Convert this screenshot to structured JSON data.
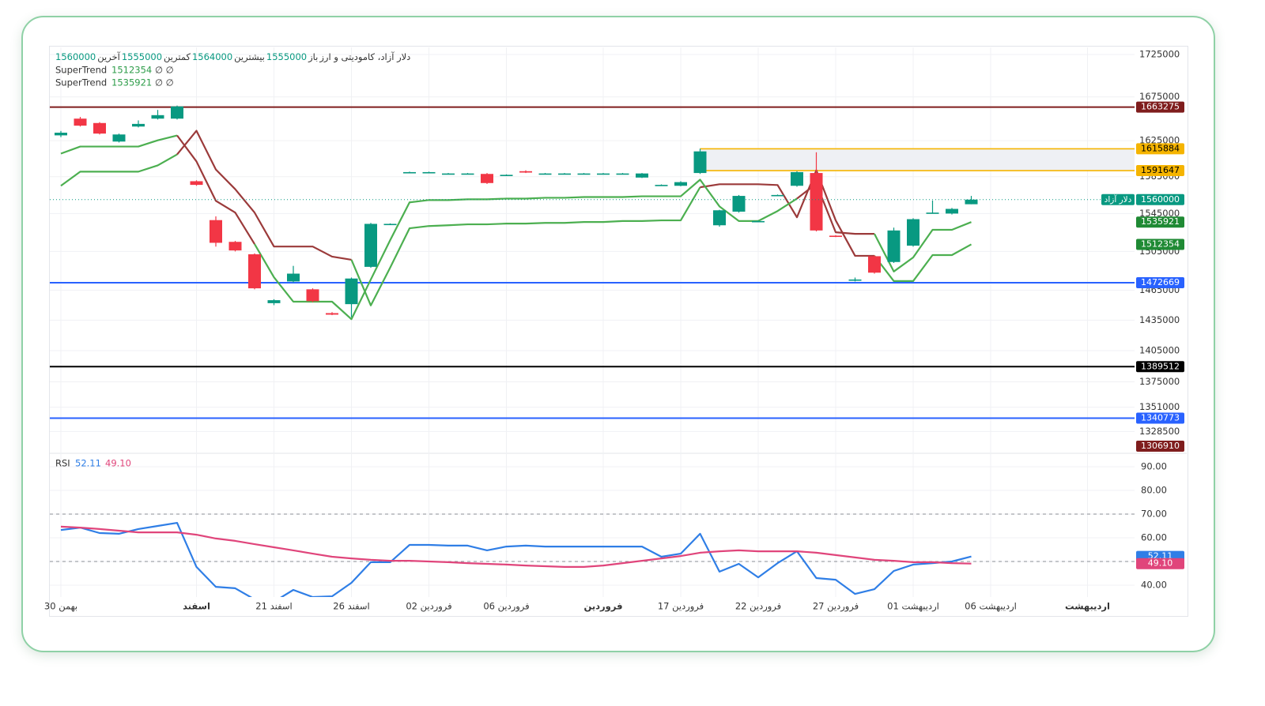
{
  "chart_data": [
    {
      "type": "candlestick",
      "title": "دلار آزاد، کامودیتی و ارز",
      "symbol": "دلار آزاد",
      "ohlc_labels": {
        "open": "باز",
        "high": "بیشترین",
        "low": "کمترین",
        "close": "آخرین"
      },
      "log_scale": true,
      "grid": true,
      "up_color": "#089981",
      "down_color": "#f23645",
      "ylim": [
        1310000,
        1733500
      ],
      "yticks": [
        1725000,
        1675000,
        1625000,
        1585000,
        1545000,
        1505000,
        1465000,
        1435000,
        1405000,
        1375000,
        1351000,
        1328500
      ],
      "categories": [
        "30 بهمن",
        null,
        null,
        null,
        null,
        null,
        null,
        "اسفند",
        null,
        null,
        null,
        "21 اسفند",
        null,
        null,
        null,
        "26 اسفند",
        null,
        null,
        null,
        "02 فروردین",
        null,
        null,
        null,
        "06 فروردین",
        null,
        null,
        null,
        null,
        "فروردین",
        null,
        null,
        null,
        "17 فروردین",
        null,
        null,
        null,
        "22 فروردین",
        null,
        null,
        null,
        "27 فروردین",
        null,
        null,
        null,
        "01 اردیبهشت",
        null,
        null,
        null,
        "06 اردیبهشت",
        null,
        null,
        null,
        null,
        "اردیبهشت"
      ],
      "open": [
        1631000,
        1650000,
        1645000,
        1624000,
        1641000,
        1650000,
        1650000,
        1580000,
        1538000,
        1515000,
        1502000,
        1452000,
        1474000,
        1466000,
        1442000,
        1451000,
        1489000,
        1533500,
        1589500,
        1589500,
        1588000,
        1588000,
        1588000,
        1586500,
        1591000,
        1588000,
        1588000,
        1588000,
        1588000,
        1588000,
        1584000,
        1575500,
        1575000,
        1589000,
        1532500,
        1547000,
        1536500,
        1564500,
        1575000,
        1589000,
        1521500,
        1475500,
        1500000,
        1494000,
        1511000,
        1545500,
        1545000,
        1555000,
        null,
        null,
        null,
        null,
        null,
        null
      ],
      "high": [
        1636000,
        1652000,
        1646000,
        1633000,
        1648000,
        1660000,
        1665000,
        1581000,
        1542000,
        1516000,
        1503000,
        1456000,
        1490000,
        1467000,
        1443000,
        1478000,
        1535000,
        1534500,
        1590500,
        1590500,
        1589000,
        1589000,
        1589000,
        1587500,
        1592000,
        1589000,
        1589000,
        1589000,
        1589000,
        1589000,
        1589000,
        1576500,
        1580000,
        1616000,
        1549000,
        1565000,
        1537500,
        1565500,
        1591000,
        1612000,
        1522000,
        1478000,
        1501000,
        1530000,
        1540000,
        1559000,
        1551000,
        1564000,
        null,
        null,
        null,
        null,
        null,
        null
      ],
      "low": [
        1629000,
        1641000,
        1632000,
        1623000,
        1640000,
        1649000,
        1649000,
        1575000,
        1510000,
        1505000,
        1466000,
        1450000,
        1473000,
        1453000,
        1440000,
        1438000,
        1488000,
        1533000,
        1589500,
        1589500,
        1588000,
        1588000,
        1577000,
        1586500,
        1589000,
        1588000,
        1588000,
        1588000,
        1588000,
        1588000,
        1583500,
        1575500,
        1574500,
        1588000,
        1531000,
        1546000,
        1536500,
        1564500,
        1574000,
        1526000,
        1520000,
        1474000,
        1482000,
        1493000,
        1510000,
        1545000,
        1544000,
        1555000,
        null,
        null,
        null,
        null,
        null,
        null
      ],
      "close": [
        1634000,
        1642000,
        1633000,
        1632000,
        1644000,
        1654000,
        1664000,
        1576000,
        1514000,
        1506000,
        1467000,
        1455000,
        1482000,
        1454000,
        1440500,
        1477000,
        1534000,
        1534000,
        1590000,
        1590000,
        1588500,
        1588500,
        1578000,
        1587000,
        1589500,
        1588500,
        1588500,
        1588500,
        1588500,
        1588500,
        1588500,
        1576000,
        1579000,
        1613000,
        1548500,
        1564000,
        1537000,
        1565000,
        1590000,
        1527000,
        1520500,
        1476000,
        1483000,
        1527000,
        1539000,
        1546000,
        1550000,
        1560000,
        null,
        null,
        null,
        null,
        null,
        null
      ],
      "series": [
        {
          "name": "SuperTrend",
          "inputs": "∅ ∅",
          "values": [
            1575000,
            1590500,
            1590500,
            1590500,
            1590500,
            1597400,
            1609600,
            1636200,
            1592900,
            1571300,
            1546000,
            1510100,
            1510100,
            1510100,
            1499600,
            1496300,
            1449700,
            1488200,
            1529300,
            1531700,
            1532500,
            1533500,
            1533500,
            1534300,
            1534300,
            1535000,
            1535000,
            1536000,
            1536000,
            1537000,
            1537000,
            1537700,
            1537700,
            1573400,
            1576700,
            1576700,
            1576700,
            1575800,
            1541000,
            1592000,
            1537700,
            1500400,
            1500400,
            1474400,
            1474400,
            1501200,
            1501200,
            1512354,
            null,
            null,
            null,
            null,
            null,
            null
          ],
          "colors": [
            "#4caf50",
            "#4caf50",
            "#4caf50",
            "#4caf50",
            "#4caf50",
            "#4caf50",
            "#4caf50",
            "#9b3a3a",
            "#9b3a3a",
            "#9b3a3a",
            "#9b3a3a",
            "#9b3a3a",
            "#9b3a3a",
            "#9b3a3a",
            "#9b3a3a",
            "#9b3a3a",
            "#4caf50",
            "#4caf50",
            "#4caf50",
            "#4caf50",
            "#4caf50",
            "#4caf50",
            "#4caf50",
            "#4caf50",
            "#4caf50",
            "#4caf50",
            "#4caf50",
            "#4caf50",
            "#4caf50",
            "#4caf50",
            "#4caf50",
            "#4caf50",
            "#4caf50",
            "#4caf50",
            "#9b3a3a",
            "#9b3a3a",
            "#9b3a3a",
            "#9b3a3a",
            "#9b3a3a",
            "#9b3a3a",
            "#9b3a3a",
            "#9b3a3a",
            "#9b3a3a",
            "#4caf50",
            "#4caf50",
            "#4caf50",
            "#4caf50",
            "#4caf50",
            null,
            null,
            null,
            null,
            null,
            null
          ]
        },
        {
          "name": "SuperTrend",
          "inputs": "∅ ∅",
          "values": [
            1610500,
            1618400,
            1618400,
            1618400,
            1618400,
            1625400,
            1630900,
            1601800,
            1558700,
            1546000,
            1512700,
            1478300,
            1453500,
            1453500,
            1453500,
            1436000,
            1476000,
            1516800,
            1557000,
            1559500,
            1559500,
            1560300,
            1560300,
            1561100,
            1561100,
            1562000,
            1562000,
            1562800,
            1562800,
            1562800,
            1563600,
            1563600,
            1563600,
            1581700,
            1552700,
            1537000,
            1537000,
            1547700,
            1561100,
            1577400,
            1525100,
            1523400,
            1523400,
            1484200,
            1498700,
            1527700,
            1527700,
            1535921,
            null,
            null,
            null,
            null,
            null,
            null
          ],
          "colors": [
            "#4caf50",
            "#4caf50",
            "#4caf50",
            "#4caf50",
            "#4caf50",
            "#4caf50",
            "#4caf50",
            "#9b3a3a",
            "#9b3a3a",
            "#9b3a3a",
            "#9b3a3a",
            "#4caf50",
            "#4caf50",
            "#4caf50",
            "#4caf50",
            "#4caf50",
            "#4caf50",
            "#4caf50",
            "#4caf50",
            "#4caf50",
            "#4caf50",
            "#4caf50",
            "#4caf50",
            "#4caf50",
            "#4caf50",
            "#4caf50",
            "#4caf50",
            "#4caf50",
            "#4caf50",
            "#4caf50",
            "#4caf50",
            "#4caf50",
            "#4caf50",
            "#4caf50",
            "#4caf50",
            "#4caf50",
            "#4caf50",
            "#4caf50",
            "#4caf50",
            "#9b3a3a",
            "#9b3a3a",
            "#9b3a3a",
            "#9b3a3a",
            "#4caf50",
            "#4caf50",
            "#4caf50",
            "#4caf50",
            "#4caf50",
            null,
            null,
            null,
            null,
            null,
            null
          ]
        }
      ],
      "levels": [
        {
          "value": 1663275,
          "color": "#7f1d1d"
        },
        {
          "value": 1615884,
          "color": "#f5b400",
          "from": 33
        },
        {
          "value": 1591647,
          "color": "#f5b400",
          "from": 33
        },
        {
          "value": 1472669,
          "color": "#2962ff"
        },
        {
          "value": 1389512,
          "color": "#000000"
        },
        {
          "value": 1340773,
          "color": "#2962ff"
        },
        {
          "value": 1306910,
          "color": "#7f1d1d"
        }
      ]
    },
    {
      "type": "line",
      "title": "RSI",
      "ylim": [
        35,
        95
      ],
      "yticks": [
        {
          "value": 90,
          "label": "90.00"
        },
        {
          "value": 80,
          "label": "80.00"
        },
        {
          "value": 70,
          "label": "70.00"
        },
        {
          "value": 60,
          "label": "60.00"
        },
        {
          "value": 50,
          "label": "50.00"
        },
        {
          "value": 40,
          "label": "40.00"
        }
      ],
      "reference_lines": [
        70,
        50
      ],
      "series": [
        {
          "color": "#2f7ee6",
          "values": [
            63.3,
            64.3,
            62.0,
            61.7,
            63.7,
            65.0,
            66.3,
            47.7,
            39.3,
            38.7,
            34.0,
            33.0,
            38.0,
            35.0,
            35.3,
            41.0,
            49.7,
            49.7,
            57.0,
            57.0,
            56.7,
            56.7,
            54.7,
            56.3,
            56.7,
            56.3,
            56.3,
            56.3,
            56.3,
            56.3,
            56.3,
            52.0,
            53.3,
            61.7,
            45.7,
            49.0,
            43.3,
            49.3,
            54.3,
            43.0,
            42.3,
            36.3,
            38.3,
            46.0,
            48.7,
            49.3,
            50.0,
            52.11
          ]
        },
        {
          "color": "#e0457b",
          "values": [
            64.7,
            64.3,
            63.7,
            63.0,
            62.3,
            62.3,
            62.3,
            61.3,
            59.7,
            58.7,
            57.3,
            56.0,
            54.7,
            53.3,
            52.0,
            51.3,
            50.7,
            50.3,
            50.3,
            50.0,
            49.7,
            49.3,
            49.0,
            48.7,
            48.3,
            48.0,
            47.7,
            47.7,
            48.3,
            49.3,
            50.3,
            51.3,
            52.3,
            53.7,
            54.3,
            54.7,
            54.3,
            54.3,
            54.3,
            53.7,
            52.7,
            51.7,
            50.7,
            50.3,
            49.7,
            49.7,
            49.3,
            49.1
          ],
          "value_labels": [
            null,
            null,
            null,
            null,
            null,
            null,
            null,
            null,
            null,
            null,
            null,
            null,
            null,
            null,
            null,
            null,
            null,
            null,
            null,
            null,
            null,
            null,
            null,
            null,
            null,
            null,
            null,
            null,
            null,
            null,
            null,
            null,
            null,
            null,
            null,
            null,
            null,
            null,
            null,
            null,
            null,
            null,
            null,
            null,
            null,
            null,
            null,
            "49.10"
          ]
        }
      ]
    }
  ]
}
